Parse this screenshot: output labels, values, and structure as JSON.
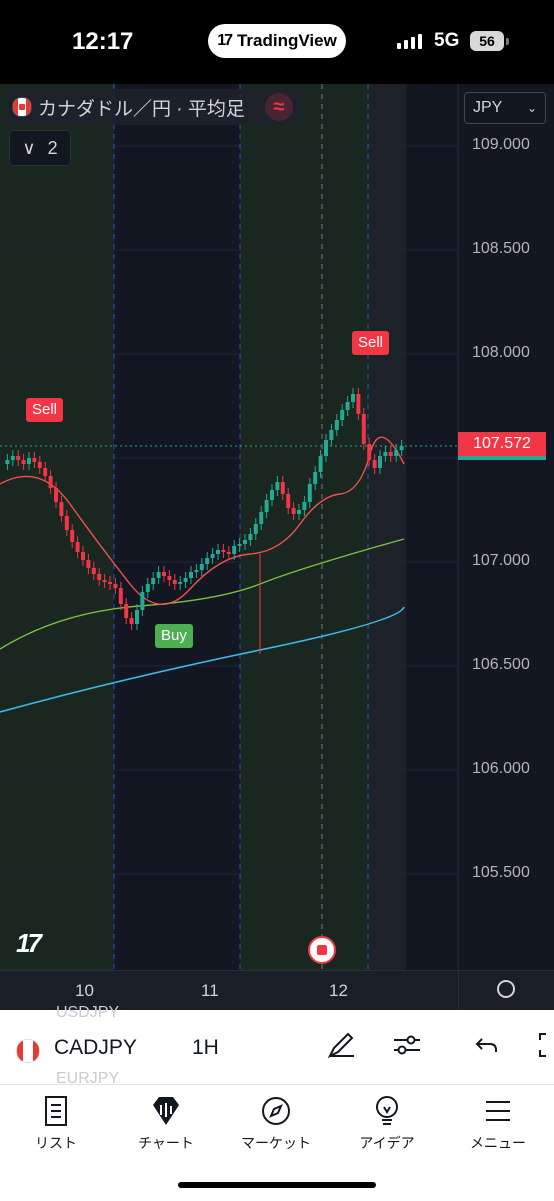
{
  "status_bar": {
    "time": "12:17",
    "app_name": "TradingView",
    "network": "5G",
    "battery": "56"
  },
  "chart": {
    "legend_title": "カナダドル／円 · 平均足",
    "collapse_count": "2",
    "currency": "JPY",
    "price_labels": [
      "109.000",
      "108.500",
      "108.000",
      "107.000",
      "106.500",
      "106.000",
      "105.500"
    ],
    "last_price": "107.572",
    "time_labels": [
      "10",
      "11",
      "12"
    ],
    "signals": {
      "sell_1": "Sell",
      "sell_2": "Sell",
      "buy_1": "Buy"
    },
    "colors": {
      "up": "#22ab94",
      "down": "#f23645",
      "ma_fast": "#f0524f",
      "ma_mid": "#7bc043",
      "ma_slow": "#3fb8e8",
      "background": "#131722"
    }
  },
  "toolbar": {
    "symbol": "CADJPY",
    "interval": "1H",
    "ghost_prev": "USDJPY",
    "ghost_next": "EURJPY"
  },
  "nav": {
    "items": [
      {
        "label": "リスト",
        "icon": "watchlist-icon"
      },
      {
        "label": "チャート",
        "icon": "chart-icon"
      },
      {
        "label": "マーケット",
        "icon": "compass-icon"
      },
      {
        "label": "アイデア",
        "icon": "lightbulb-icon"
      },
      {
        "label": "メニュー",
        "icon": "menu-icon"
      }
    ]
  }
}
